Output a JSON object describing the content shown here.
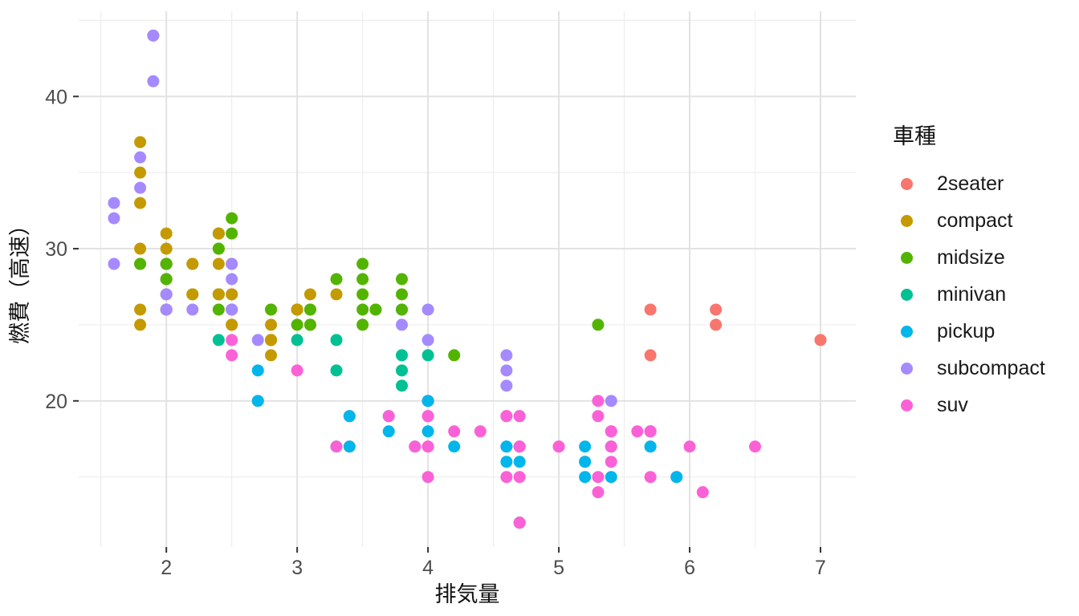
{
  "chart_data": {
    "type": "scatter",
    "title": "",
    "xlabel": "排気量",
    "ylabel": "燃費（高速）",
    "legend_title": "車種",
    "legend_position": "right",
    "grid": true,
    "background": "#ffffff",
    "xlim": [
      1.33,
      7.27
    ],
    "ylim": [
      10.4,
      45.6
    ],
    "x_ticks": [
      2,
      3,
      4,
      5,
      6,
      7
    ],
    "x_minor_ticks": [
      1.5,
      2.5,
      3.5,
      4.5,
      5.5,
      6.5
    ],
    "y_ticks": [
      20,
      30,
      40
    ],
    "y_minor_ticks": [
      15,
      25,
      35,
      45
    ],
    "point_radius": 7.5,
    "series": [
      {
        "name": "2seater",
        "color": "#F8766D"
      },
      {
        "name": "compact",
        "color": "#C49A00"
      },
      {
        "name": "midsize",
        "color": "#53B400"
      },
      {
        "name": "minivan",
        "color": "#00C094"
      },
      {
        "name": "pickup",
        "color": "#00B6EB"
      },
      {
        "name": "subcompact",
        "color": "#A58AFF"
      },
      {
        "name": "suv",
        "color": "#FB61D7"
      }
    ],
    "points_format": [
      "displ",
      "hwy",
      "series_index"
    ],
    "points": [
      [
        1.8,
        29,
        1
      ],
      [
        2.0,
        31,
        1
      ],
      [
        2.0,
        30,
        1
      ],
      [
        2.8,
        26,
        1
      ],
      [
        3.1,
        27,
        1
      ],
      [
        1.8,
        26,
        1
      ],
      [
        1.8,
        25,
        1
      ],
      [
        2.0,
        28,
        1
      ],
      [
        2.0,
        27,
        1
      ],
      [
        2.8,
        25,
        1
      ],
      [
        3.1,
        25,
        1
      ],
      [
        2.8,
        24,
        2
      ],
      [
        3.1,
        25,
        2
      ],
      [
        4.2,
        23,
        2
      ],
      [
        5.3,
        20,
        6
      ],
      [
        5.3,
        15,
        6
      ],
      [
        5.7,
        17,
        6
      ],
      [
        6.0,
        17,
        6
      ],
      [
        5.7,
        26,
        0
      ],
      [
        5.7,
        23,
        0
      ],
      [
        6.2,
        26,
        0
      ],
      [
        6.2,
        25,
        0
      ],
      [
        7.0,
        24,
        0
      ],
      [
        5.3,
        19,
        6
      ],
      [
        5.3,
        14,
        6
      ],
      [
        5.7,
        15,
        6
      ],
      [
        6.5,
        17,
        6
      ],
      [
        2.4,
        27,
        2
      ],
      [
        2.4,
        30,
        2
      ],
      [
        3.1,
        26,
        2
      ],
      [
        3.5,
        29,
        2
      ],
      [
        3.6,
        26,
        2
      ],
      [
        2.4,
        24,
        3
      ],
      [
        3.0,
        24,
        3
      ],
      [
        3.3,
        22,
        3
      ],
      [
        3.3,
        24,
        3
      ],
      [
        3.3,
        17,
        3
      ],
      [
        3.8,
        22,
        3
      ],
      [
        3.8,
        21,
        3
      ],
      [
        3.8,
        23,
        3
      ],
      [
        4.0,
        23,
        3
      ],
      [
        3.7,
        19,
        4
      ],
      [
        3.7,
        18,
        4
      ],
      [
        3.9,
        17,
        4
      ],
      [
        4.7,
        19,
        4
      ],
      [
        4.7,
        12,
        4
      ],
      [
        3.9,
        17,
        6
      ],
      [
        4.7,
        17,
        6
      ],
      [
        4.7,
        12,
        6
      ],
      [
        5.2,
        16,
        6
      ],
      [
        5.7,
        18,
        6
      ],
      [
        5.9,
        15,
        6
      ],
      [
        4.7,
        16,
        4
      ],
      [
        4.7,
        12,
        4
      ],
      [
        4.7,
        17,
        4
      ],
      [
        5.2,
        15,
        4
      ],
      [
        5.2,
        16,
        4
      ],
      [
        5.2,
        17,
        4
      ],
      [
        5.7,
        17,
        4
      ],
      [
        5.9,
        15,
        4
      ],
      [
        4.6,
        17,
        6
      ],
      [
        5.4,
        17,
        6
      ],
      [
        5.4,
        18,
        6
      ],
      [
        4.0,
        17,
        6
      ],
      [
        4.0,
        19,
        6
      ],
      [
        4.6,
        19,
        6
      ],
      [
        5.0,
        17,
        6
      ],
      [
        4.2,
        17,
        4
      ],
      [
        4.6,
        16,
        4
      ],
      [
        4.6,
        17,
        4
      ],
      [
        5.4,
        15,
        4
      ],
      [
        5.4,
        17,
        4
      ],
      [
        3.8,
        26,
        5
      ],
      [
        3.8,
        25,
        5
      ],
      [
        4.0,
        26,
        5
      ],
      [
        4.0,
        24,
        5
      ],
      [
        4.6,
        21,
        5
      ],
      [
        4.6,
        22,
        5
      ],
      [
        4.6,
        23,
        5
      ],
      [
        5.4,
        20,
        5
      ],
      [
        1.6,
        33,
        5
      ],
      [
        1.6,
        32,
        5
      ],
      [
        1.6,
        29,
        5
      ],
      [
        1.8,
        34,
        5
      ],
      [
        1.8,
        36,
        5
      ],
      [
        2.0,
        29,
        5
      ],
      [
        2.4,
        26,
        2
      ],
      [
        2.4,
        27,
        2
      ],
      [
        2.4,
        30,
        2
      ],
      [
        2.4,
        31,
        2
      ],
      [
        2.5,
        26,
        2
      ],
      [
        3.3,
        28,
        2
      ],
      [
        2.0,
        26,
        5
      ],
      [
        2.0,
        29,
        5
      ],
      [
        2.0,
        28,
        5
      ],
      [
        2.0,
        27,
        5
      ],
      [
        2.7,
        24,
        5
      ],
      [
        3.0,
        22,
        6
      ],
      [
        3.7,
        19,
        6
      ],
      [
        4.0,
        20,
        6
      ],
      [
        4.7,
        17,
        6
      ],
      [
        4.7,
        12,
        6
      ],
      [
        4.7,
        19,
        6
      ],
      [
        5.7,
        18,
        6
      ],
      [
        6.1,
        14,
        6
      ],
      [
        4.0,
        15,
        6
      ],
      [
        4.2,
        18,
        6
      ],
      [
        4.4,
        18,
        6
      ],
      [
        4.6,
        15,
        6
      ],
      [
        5.4,
        17,
        6
      ],
      [
        5.4,
        16,
        6
      ],
      [
        5.4,
        18,
        6
      ],
      [
        4.0,
        17,
        6
      ],
      [
        4.0,
        19,
        6
      ],
      [
        4.6,
        19,
        6
      ],
      [
        5.0,
        17,
        6
      ],
      [
        2.4,
        29,
        1
      ],
      [
        2.4,
        27,
        1
      ],
      [
        2.5,
        31,
        2
      ],
      [
        2.5,
        32,
        2
      ],
      [
        3.5,
        27,
        2
      ],
      [
        3.5,
        26,
        2
      ],
      [
        3.0,
        26,
        2
      ],
      [
        3.0,
        25,
        2
      ],
      [
        3.5,
        25,
        2
      ],
      [
        3.3,
        17,
        6
      ],
      [
        4.0,
        20,
        6
      ],
      [
        5.6,
        18,
        6
      ],
      [
        3.1,
        26,
        2
      ],
      [
        3.8,
        26,
        2
      ],
      [
        3.8,
        27,
        2
      ],
      [
        3.8,
        28,
        2
      ],
      [
        5.3,
        25,
        2
      ],
      [
        2.5,
        25,
        6
      ],
      [
        2.5,
        24,
        6
      ],
      [
        2.5,
        27,
        6
      ],
      [
        2.5,
        26,
        6
      ],
      [
        2.5,
        23,
        6
      ],
      [
        2.2,
        26,
        5
      ],
      [
        2.5,
        26,
        5
      ],
      [
        2.5,
        25,
        1
      ],
      [
        2.5,
        27,
        1
      ],
      [
        2.7,
        20,
        6
      ],
      [
        3.4,
        19,
        6
      ],
      [
        3.4,
        17,
        6
      ],
      [
        4.0,
        20,
        6
      ],
      [
        4.7,
        17,
        6
      ],
      [
        2.2,
        29,
        2
      ],
      [
        2.2,
        27,
        2
      ],
      [
        2.4,
        31,
        2
      ],
      [
        3.0,
        26,
        2
      ],
      [
        3.5,
        28,
        2
      ],
      [
        2.2,
        27,
        1
      ],
      [
        2.2,
        29,
        1
      ],
      [
        2.4,
        31,
        1
      ],
      [
        3.0,
        26,
        1
      ],
      [
        3.3,
        27,
        1
      ],
      [
        1.8,
        30,
        1
      ],
      [
        1.8,
        33,
        1
      ],
      [
        1.8,
        35,
        1
      ],
      [
        1.8,
        37,
        1
      ],
      [
        4.7,
        15,
        6
      ],
      [
        5.7,
        18,
        6
      ],
      [
        2.7,
        20,
        4
      ],
      [
        2.7,
        22,
        4
      ],
      [
        3.4,
        17,
        4
      ],
      [
        3.4,
        19,
        4
      ],
      [
        4.0,
        18,
        4
      ],
      [
        4.0,
        20,
        4
      ],
      [
        2.0,
        29,
        1
      ],
      [
        2.0,
        26,
        1
      ],
      [
        2.8,
        24,
        1
      ],
      [
        1.9,
        44,
        1
      ],
      [
        2.0,
        29,
        1
      ],
      [
        2.0,
        26,
        1
      ],
      [
        2.5,
        29,
        1
      ],
      [
        2.8,
        23,
        1
      ],
      [
        2.8,
        24,
        1
      ],
      [
        1.9,
        44,
        5
      ],
      [
        1.9,
        41,
        5
      ],
      [
        2.0,
        29,
        5
      ],
      [
        2.0,
        26,
        5
      ],
      [
        2.5,
        28,
        5
      ],
      [
        2.5,
        29,
        5
      ],
      [
        1.8,
        29,
        2
      ],
      [
        2.0,
        28,
        2
      ],
      [
        2.0,
        29,
        2
      ],
      [
        2.8,
        26,
        2
      ],
      [
        3.6,
        26,
        2
      ]
    ]
  }
}
